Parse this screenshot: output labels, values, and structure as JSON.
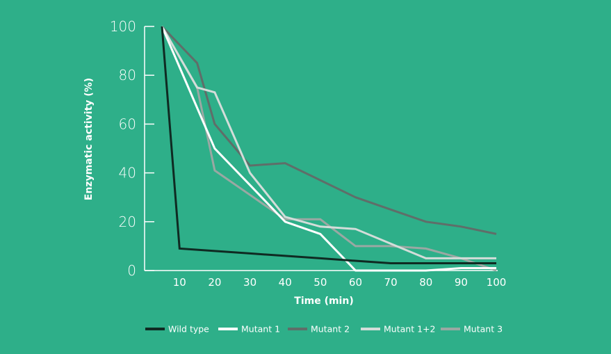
{
  "chart_data": {
    "type": "line",
    "title": "",
    "xlabel": "Time (min)",
    "ylabel": "Enzymatic activity (%)",
    "xlim": [
      5,
      100
    ],
    "ylim": [
      0,
      100
    ],
    "x_ticks": [
      "10",
      "20",
      "30",
      "40",
      "50",
      "60",
      "70",
      "80",
      "90",
      "100"
    ],
    "y_ticks": [
      "0",
      "20",
      "40",
      "60",
      "80",
      "100"
    ],
    "grid": false,
    "legend_position": "bottom",
    "series": [
      {
        "name": "Wild type",
        "color": "#0f2a22",
        "points": [
          [
            5,
            100
          ],
          [
            10,
            9
          ],
          [
            20,
            8
          ],
          [
            30,
            7
          ],
          [
            40,
            6
          ],
          [
            50,
            5
          ],
          [
            60,
            4
          ],
          [
            70,
            3
          ],
          [
            80,
            3
          ],
          [
            90,
            3
          ],
          [
            100,
            3
          ]
        ]
      },
      {
        "name": "Mutant 1",
        "color": "#ffffff",
        "points": [
          [
            5,
            100
          ],
          [
            20,
            50
          ],
          [
            30,
            35
          ],
          [
            40,
            20
          ],
          [
            50,
            15
          ],
          [
            60,
            0
          ],
          [
            70,
            0
          ],
          [
            80,
            0
          ],
          [
            90,
            1
          ],
          [
            100,
            1
          ]
        ]
      },
      {
        "name": "Mutant 2",
        "color": "#5f6e69",
        "points": [
          [
            5,
            100
          ],
          [
            15,
            85
          ],
          [
            20,
            60
          ],
          [
            30,
            43
          ],
          [
            40,
            44
          ],
          [
            50,
            37
          ],
          [
            60,
            30
          ],
          [
            70,
            25
          ],
          [
            80,
            20
          ],
          [
            90,
            18
          ],
          [
            100,
            15
          ]
        ]
      },
      {
        "name": "Mutant 1+2",
        "color": "#d3ddd9",
        "points": [
          [
            5,
            100
          ],
          [
            15,
            75
          ],
          [
            20,
            73
          ],
          [
            30,
            40
          ],
          [
            40,
            22
          ],
          [
            50,
            18
          ],
          [
            60,
            17
          ],
          [
            70,
            11
          ],
          [
            80,
            5
          ],
          [
            90,
            5
          ],
          [
            100,
            5
          ]
        ]
      },
      {
        "name": "Mutant 3",
        "color": "#9aa8a3",
        "points": [
          [
            5,
            100
          ],
          [
            15,
            75
          ],
          [
            20,
            41
          ],
          [
            30,
            31
          ],
          [
            40,
            21
          ],
          [
            50,
            21
          ],
          [
            60,
            10
          ],
          [
            70,
            10
          ],
          [
            80,
            9
          ],
          [
            90,
            5
          ],
          [
            100,
            0
          ]
        ]
      }
    ]
  }
}
